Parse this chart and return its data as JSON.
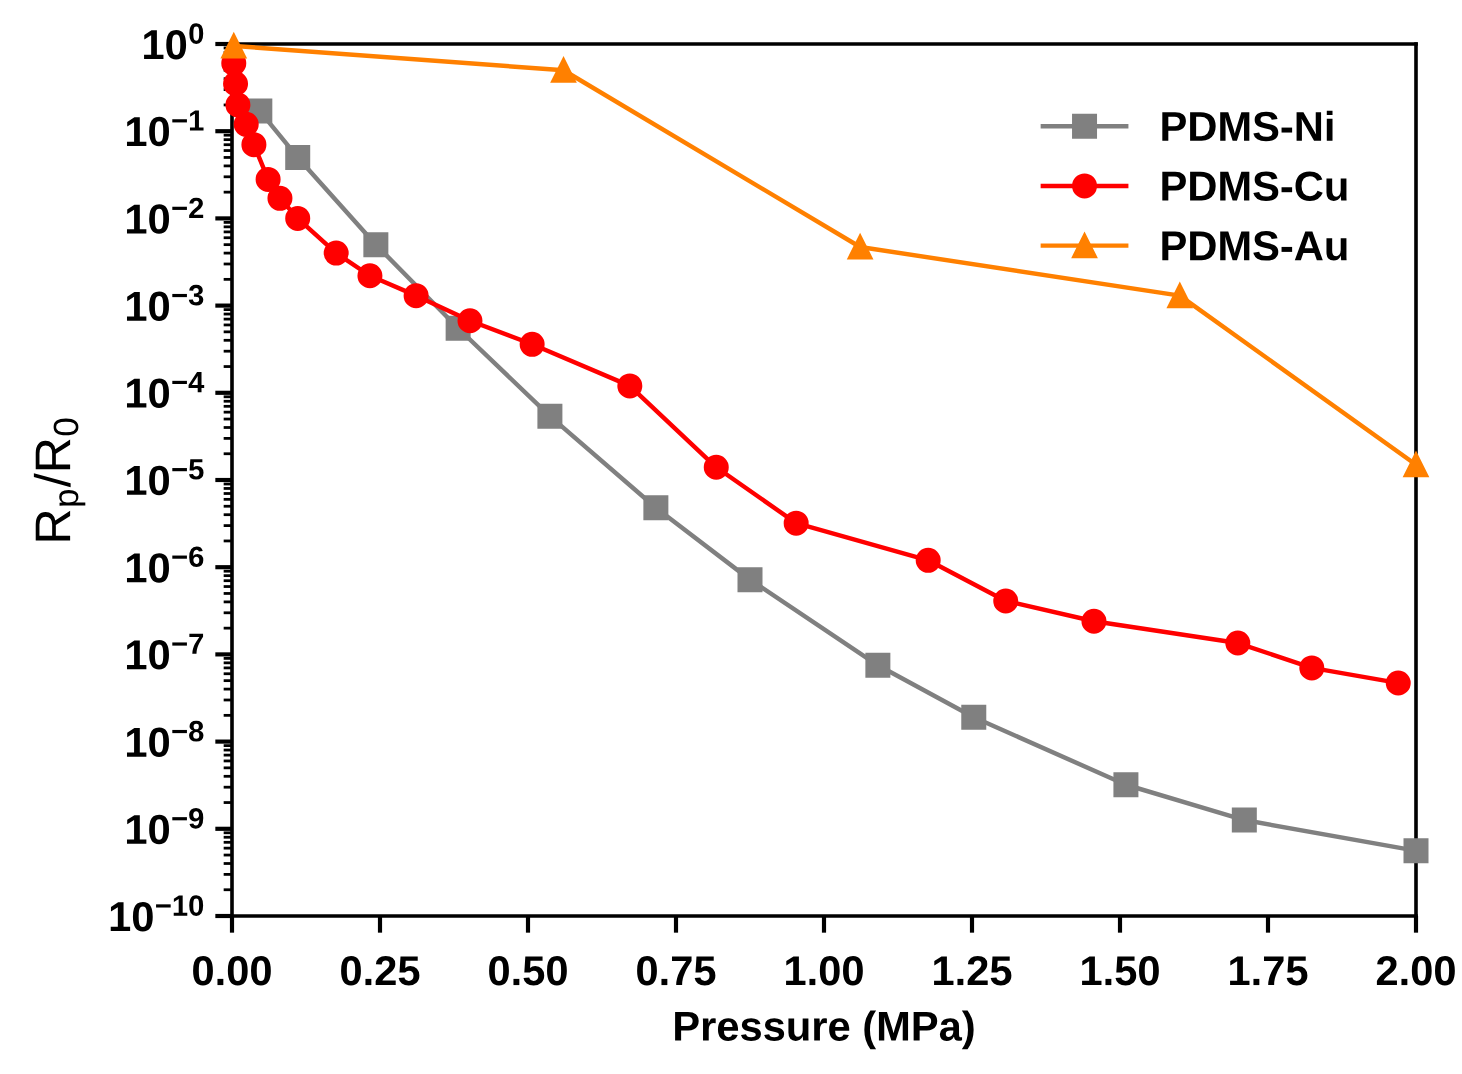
{
  "chart_data": {
    "type": "line",
    "xlabel": "Pressure (MPa)",
    "ylabel": "R$_{p}$/R$_{0}$",
    "log": "y",
    "xlim": [
      0,
      2
    ],
    "xticks": [
      {
        "value": 0,
        "label": "0.00"
      },
      {
        "value": 0.25,
        "label": "0.25"
      },
      {
        "value": 0.5,
        "label": "0.50"
      },
      {
        "value": 0.75,
        "label": "0.75"
      },
      {
        "value": 1,
        "label": "1.00"
      },
      {
        "value": 1.25,
        "label": "1.25"
      },
      {
        "value": 1.5,
        "label": "1.50"
      },
      {
        "value": 1.75,
        "label": "1.75"
      },
      {
        "value": 2,
        "label": "2.00"
      }
    ],
    "ylim": [
      1e-10,
      1
    ],
    "yticks": [
      {
        "value": 1,
        "label": "10$^{0}$"
      },
      {
        "value": 0.1,
        "label": "10$^{−1}$"
      },
      {
        "value": 0.01,
        "label": "10$^{−2}$"
      },
      {
        "value": 0.001,
        "label": "10$^{−3}$"
      },
      {
        "value": 0.0001,
        "label": "10$^{−4}$"
      },
      {
        "value": 1e-05,
        "label": "10$^{−5}$"
      },
      {
        "value": 1e-06,
        "label": "10$^{−6}$"
      },
      {
        "value": 1e-07,
        "label": "10$^{−7}$"
      },
      {
        "value": 1e-08,
        "label": "10$^{−8}$"
      },
      {
        "value": 1e-09,
        "label": "10$^{−9}$"
      },
      {
        "value": 1e-10,
        "label": "10$^{−10}$"
      }
    ],
    "grid": false,
    "legend": "top right",
    "line_style": "solid",
    "series": [
      {
        "name": "PDMS-Ni",
        "color": "#808080",
        "marker": "square",
        "x": [
          0.047,
          0.111,
          0.243,
          0.382,
          0.537,
          0.716,
          0.875,
          1.091,
          1.253,
          1.51,
          1.71,
          2.0
        ],
        "values": [
          0.17,
          0.05,
          0.005,
          0.00055,
          5.4e-05,
          4.8e-06,
          7.2e-07,
          7.5e-08,
          1.9e-08,
          3.2e-09,
          1.26e-09,
          5.6e-10
        ]
      },
      {
        "name": "PDMS-Cu",
        "color": "#ff0000",
        "marker": "circle",
        "x": [
          0.003,
          0.006,
          0.01,
          0.024,
          0.037,
          0.061,
          0.081,
          0.111,
          0.176,
          0.233,
          0.311,
          0.402,
          0.507,
          0.672,
          0.818,
          0.953,
          1.176,
          1.307,
          1.456,
          1.699,
          1.824,
          1.97
        ],
        "values": [
          0.6,
          0.35,
          0.2,
          0.12,
          0.07,
          0.028,
          0.017,
          0.01,
          0.004,
          0.0022,
          0.0013,
          0.00067,
          0.00036,
          0.00012,
          1.4e-05,
          3.2e-06,
          1.2e-06,
          4.1e-07,
          2.4e-07,
          1.35e-07,
          7e-08,
          4.7e-08
        ]
      },
      {
        "name": "PDMS-Au",
        "color": "#ff8000",
        "marker": "triangle",
        "x": [
          0.003,
          0.56,
          1.061,
          1.601,
          2.0
        ],
        "values": [
          0.95,
          0.5,
          0.0047,
          0.0013,
          1.5e-05
        ]
      }
    ]
  }
}
